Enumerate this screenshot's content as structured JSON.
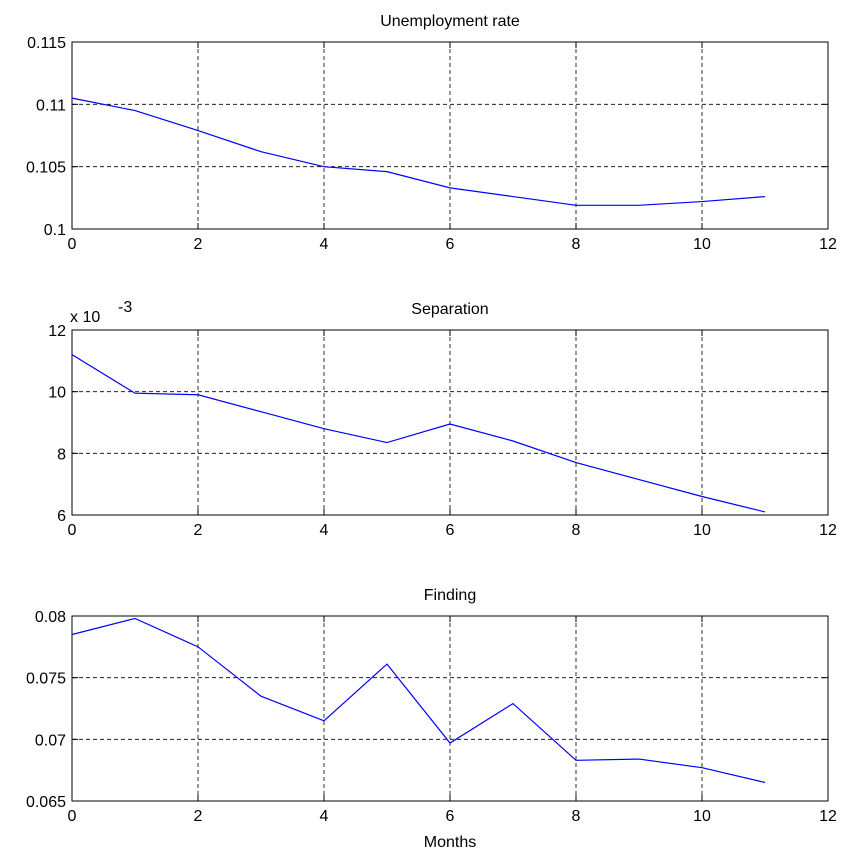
{
  "chart_data": [
    {
      "type": "line",
      "title": "Unemployment rate",
      "xlabel": "",
      "ylabel": "",
      "xlim": [
        0,
        12
      ],
      "ylim": [
        0.1,
        0.115
      ],
      "xticks": [
        0,
        2,
        4,
        6,
        8,
        10,
        12
      ],
      "xtick_labels": [
        "0",
        "2",
        "4",
        "6",
        "8",
        "10",
        "12"
      ],
      "yticks": [
        0.1,
        0.105,
        0.11,
        0.115
      ],
      "ytick_labels": [
        "0.1",
        "0.105",
        "0.11",
        "0.115"
      ],
      "exponent_label": "",
      "exponent_power": "",
      "grid": true,
      "x": [
        0,
        1,
        2,
        3,
        4,
        5,
        6,
        7,
        8,
        9,
        10,
        11
      ],
      "values": [
        0.1105,
        0.1095,
        0.1079,
        0.1062,
        0.105,
        0.1046,
        0.1033,
        0.1026,
        0.1019,
        0.1019,
        0.1022,
        0.1026
      ]
    },
    {
      "type": "line",
      "title": "Separation",
      "xlabel": "",
      "ylabel": "",
      "xlim": [
        0,
        12
      ],
      "ylim": [
        6,
        12
      ],
      "xticks": [
        0,
        2,
        4,
        6,
        8,
        10,
        12
      ],
      "xtick_labels": [
        "0",
        "2",
        "4",
        "6",
        "8",
        "10",
        "12"
      ],
      "yticks": [
        6,
        8,
        10,
        12
      ],
      "ytick_labels": [
        "6",
        "8",
        "10",
        "12"
      ],
      "exponent_label": "x 10",
      "exponent_power": "-3",
      "grid": true,
      "x": [
        0,
        1,
        2,
        3,
        4,
        5,
        6,
        7,
        8,
        9,
        10,
        11
      ],
      "values": [
        11.2,
        9.95,
        9.9,
        9.35,
        8.8,
        8.35,
        8.95,
        8.4,
        7.7,
        7.15,
        6.6,
        6.1
      ]
    },
    {
      "type": "line",
      "title": "Finding",
      "xlabel": "Months",
      "ylabel": "",
      "xlim": [
        0,
        12
      ],
      "ylim": [
        0.065,
        0.08
      ],
      "xticks": [
        0,
        2,
        4,
        6,
        8,
        10,
        12
      ],
      "xtick_labels": [
        "0",
        "2",
        "4",
        "6",
        "8",
        "10",
        "12"
      ],
      "yticks": [
        0.065,
        0.07,
        0.075,
        0.08
      ],
      "ytick_labels": [
        "0.065",
        "0.07",
        "0.075",
        "0.08"
      ],
      "exponent_label": "",
      "exponent_power": "",
      "grid": true,
      "x": [
        0,
        1,
        2,
        3,
        4,
        5,
        6,
        7,
        8,
        9,
        10,
        11
      ],
      "values": [
        0.0785,
        0.0798,
        0.0775,
        0.0735,
        0.0715,
        0.0761,
        0.0697,
        0.0729,
        0.0683,
        0.0684,
        0.0677,
        0.0665
      ]
    }
  ],
  "colors": {
    "series": "#0000ff",
    "axes": "#000000",
    "background": "#ffffff"
  }
}
